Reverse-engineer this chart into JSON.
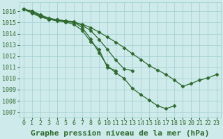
{
  "title": "Graphe pression niveau de la mer (hPa)",
  "hours": [
    0,
    1,
    2,
    3,
    4,
    5,
    6,
    7,
    8,
    9,
    10,
    11,
    12,
    13,
    14,
    15,
    16,
    17,
    18,
    19,
    20,
    21,
    22,
    23
  ],
  "ylim": [
    1006.5,
    1016.8
  ],
  "yticks": [
    1007,
    1008,
    1009,
    1010,
    1011,
    1012,
    1013,
    1014,
    1015,
    1016
  ],
  "line1_x": [
    0,
    1,
    2,
    3,
    4,
    5,
    6,
    7,
    8,
    9,
    10,
    11,
    12,
    13,
    14,
    15,
    16,
    17,
    18
  ],
  "line1_y": [
    1016.2,
    1016.05,
    1015.7,
    1015.4,
    1015.25,
    1015.15,
    1015.05,
    1014.55,
    1013.55,
    1012.3,
    1011.15,
    1010.5,
    1010.0,
    1009.1,
    1008.55,
    1008.05,
    1007.55,
    1007.3,
    1007.55
  ],
  "line2_x": [
    0,
    1,
    2,
    3,
    4,
    5,
    6,
    7,
    8,
    9,
    10,
    11
  ],
  "line2_y": [
    1016.2,
    1016.0,
    1015.65,
    1015.3,
    1015.15,
    1015.05,
    1014.85,
    1014.3,
    1013.3,
    1012.6,
    1011.0,
    1010.7
  ],
  "line3_x": [
    0,
    1,
    2,
    3,
    4,
    5,
    6,
    7,
    8,
    9,
    10,
    11,
    12,
    13
  ],
  "line3_y": [
    1016.2,
    1015.9,
    1015.6,
    1015.35,
    1015.25,
    1015.15,
    1015.1,
    1014.75,
    1014.3,
    1013.5,
    1012.6,
    1011.65,
    1010.85,
    1010.7
  ],
  "line4_x": [
    0,
    1,
    2,
    3,
    4,
    5,
    6,
    7,
    8,
    9,
    10,
    11,
    12,
    13,
    14,
    15,
    16,
    17,
    18,
    19,
    20,
    21,
    22,
    23
  ],
  "line4_y": [
    1016.2,
    1015.85,
    1015.5,
    1015.3,
    1015.2,
    1015.1,
    1015.0,
    1014.85,
    1014.55,
    1014.15,
    1013.7,
    1013.25,
    1012.75,
    1012.2,
    1011.7,
    1011.15,
    1010.75,
    1010.35,
    1009.85,
    1009.3,
    1009.55,
    1009.85,
    1010.05,
    1010.35
  ],
  "line_color": "#2d6a2d",
  "marker": "D",
  "marker_size": 2.5,
  "bg_color": "#ceeaea",
  "grid_color": "#9ecece",
  "text_color": "#2d6a2d",
  "tick_fontsize": 6,
  "title_fontsize": 8
}
